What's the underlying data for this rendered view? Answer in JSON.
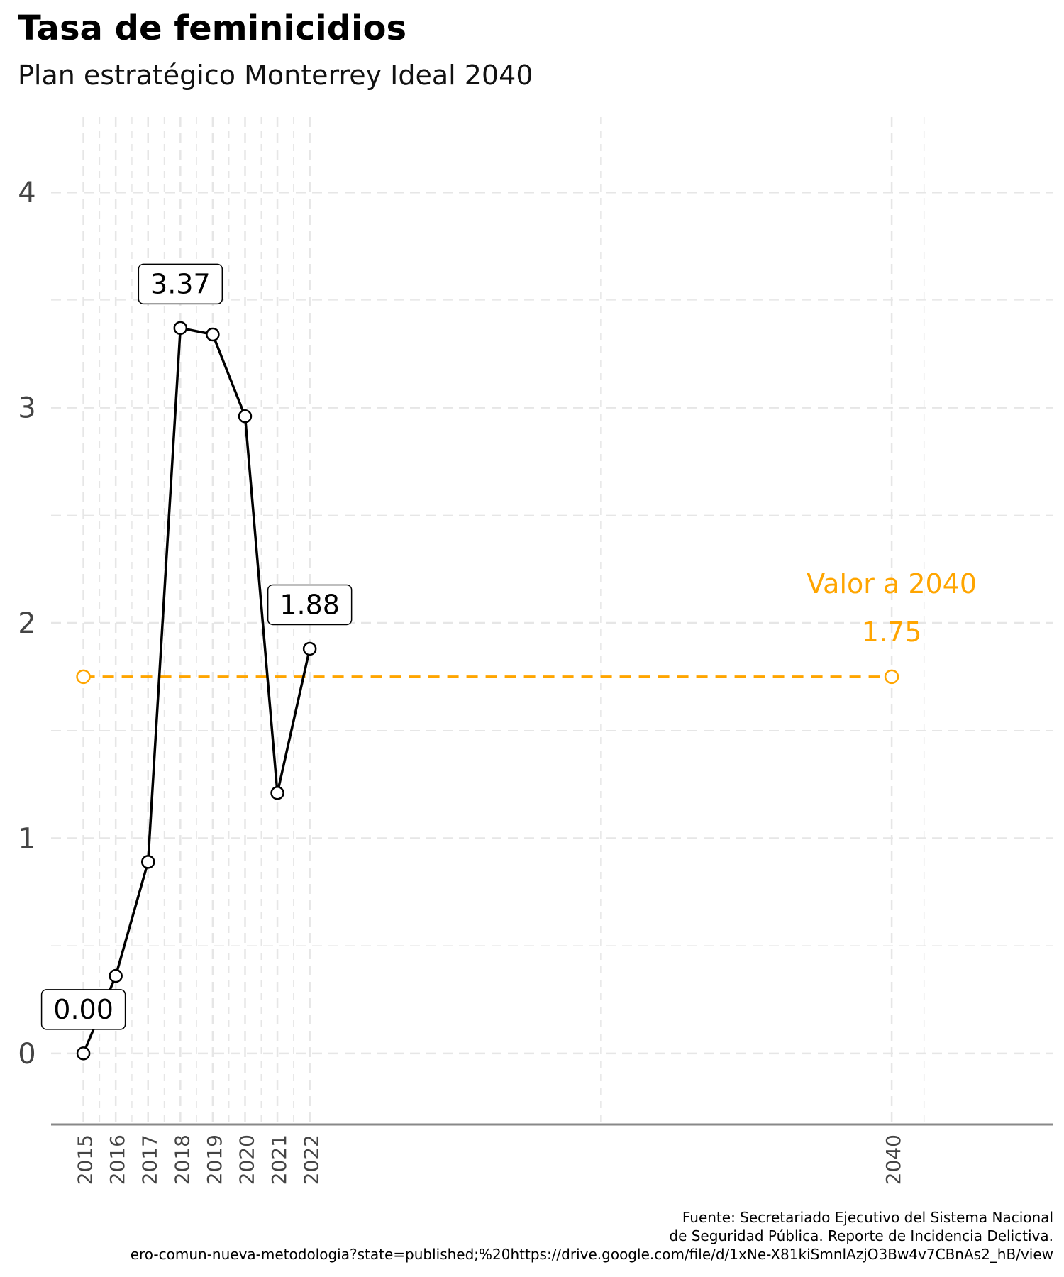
{
  "title": "Tasa de feminicidios",
  "subtitle": "Plan estratégico Monterrey Ideal 2040",
  "caption_lines": [
    "Fuente: Secretariado Ejecutivo del Sistema Nacional",
    "de Seguridad Pública. Reporte de Incidencia Delictiva.",
    "ero-comun-nueva-metodologia?state=published;%20https://drive.google.com/file/d/1xNe-X81kiSmnlAzjO3Bw4v7CBnAs2_hB/view"
  ],
  "colors": {
    "series": "#000000",
    "target": "#FFA500",
    "grid": "#e6e6e6",
    "axis": "#888888",
    "tick_text": "#444444"
  },
  "chart_data": {
    "type": "line",
    "x_ticks": [
      2015,
      2016,
      2017,
      2018,
      2019,
      2020,
      2021,
      2022,
      2040
    ],
    "y_ticks": [
      0,
      1,
      2,
      3,
      4
    ],
    "xlim": [
      2014,
      2045
    ],
    "ylim": [
      -0.33,
      4.35
    ],
    "grid": true,
    "series": [
      {
        "x": [
          2015,
          2016,
          2017,
          2018,
          2019,
          2020,
          2021,
          2022
        ],
        "y": [
          0.0,
          0.36,
          0.89,
          3.37,
          3.34,
          2.96,
          1.21,
          1.88
        ]
      }
    ],
    "point_labels": [
      {
        "x": 2015,
        "y": 0.0,
        "text": "0.00"
      },
      {
        "x": 2018,
        "y": 3.37,
        "text": "3.37"
      },
      {
        "x": 2022,
        "y": 1.88,
        "text": "1.88"
      }
    ],
    "target": {
      "value": 1.75,
      "x_start": 2015,
      "x_end": 2040,
      "label_line1": "Valor a 2040",
      "label_line2": "1.75"
    }
  }
}
